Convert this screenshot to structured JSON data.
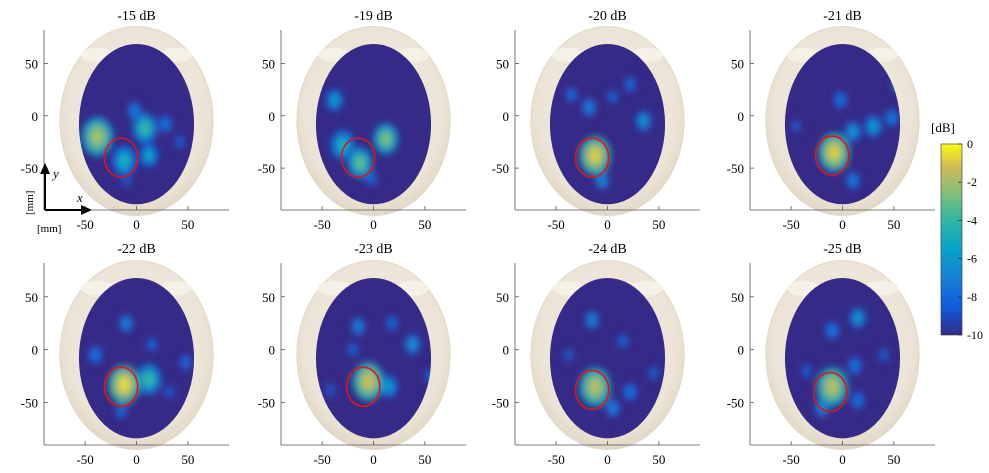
{
  "colorbar": {
    "unit_label": "[dB]",
    "ticks": [
      0,
      -2,
      -4,
      -6,
      -8,
      -10
    ],
    "range": [
      -10,
      0
    ],
    "colormap": "parula"
  },
  "axis_labels": {
    "x": "x",
    "y": "y",
    "x_unit": "[mm]",
    "y_unit": "[mm]"
  },
  "chart_data": [
    {
      "type": "heatmap",
      "title": "-15 dB",
      "xlim": [
        -90,
        90
      ],
      "ylim": [
        -90,
        80
      ],
      "xticks": [
        -50,
        0,
        50
      ],
      "yticks": [
        50,
        0,
        -50
      ],
      "target": {
        "x": -15,
        "y": -40
      },
      "blobs": [
        {
          "x": -38,
          "y": -20,
          "value": -1.8
        },
        {
          "x": -12,
          "y": -43,
          "value": -4.5
        },
        {
          "x": 8,
          "y": -12,
          "value": -3.8
        },
        {
          "x": 12,
          "y": -38,
          "value": -5.0
        },
        {
          "x": -2,
          "y": 5,
          "value": -7.0
        },
        {
          "x": 28,
          "y": -8,
          "value": -7.2
        },
        {
          "x": 42,
          "y": -25,
          "value": -8.0
        },
        {
          "x": -10,
          "y": -62,
          "value": -8.2
        }
      ]
    },
    {
      "type": "heatmap",
      "title": "-19 dB",
      "xlim": [
        -90,
        90
      ],
      "ylim": [
        -90,
        80
      ],
      "xticks": [
        -50,
        0,
        50
      ],
      "yticks": [
        50,
        0,
        -50
      ],
      "target": {
        "x": -15,
        "y": -40
      },
      "blobs": [
        {
          "x": -38,
          "y": 15,
          "value": -5.5
        },
        {
          "x": 12,
          "y": -22,
          "value": -2.5
        },
        {
          "x": -30,
          "y": -28,
          "value": -4.5
        },
        {
          "x": -13,
          "y": -45,
          "value": -3.0
        },
        {
          "x": -2,
          "y": -60,
          "value": -7.5
        }
      ]
    },
    {
      "type": "heatmap",
      "title": "-20 dB",
      "xlim": [
        -90,
        90
      ],
      "ylim": [
        -90,
        80
      ],
      "xticks": [
        -50,
        0,
        50
      ],
      "yticks": [
        50,
        0,
        -50
      ],
      "target": {
        "x": -15,
        "y": -40
      },
      "blobs": [
        {
          "x": -12,
          "y": -38,
          "value": -0.8
        },
        {
          "x": -5,
          "y": -62,
          "value": -6.5
        },
        {
          "x": 35,
          "y": -5,
          "value": -6.0
        },
        {
          "x": -35,
          "y": 20,
          "value": -7.5
        },
        {
          "x": -18,
          "y": 8,
          "value": -6.8
        },
        {
          "x": 22,
          "y": 30,
          "value": -7.5
        },
        {
          "x": 5,
          "y": 18,
          "value": -7.8
        }
      ]
    },
    {
      "type": "heatmap",
      "title": "-21 dB",
      "xlim": [
        -90,
        90
      ],
      "ylim": [
        -90,
        80
      ],
      "xticks": [
        -50,
        0,
        50
      ],
      "yticks": [
        50,
        0,
        -50
      ],
      "target": {
        "x": -10,
        "y": -38
      },
      "blobs": [
        {
          "x": -8,
          "y": -35,
          "value": -0.8
        },
        {
          "x": 10,
          "y": -15,
          "value": -5.8
        },
        {
          "x": 30,
          "y": -10,
          "value": -5.5
        },
        {
          "x": -2,
          "y": 15,
          "value": -7.2
        },
        {
          "x": 55,
          "y": 30,
          "value": -6.5
        },
        {
          "x": 48,
          "y": -2,
          "value": -7.0
        },
        {
          "x": 10,
          "y": -62,
          "value": -7.0
        },
        {
          "x": -45,
          "y": -10,
          "value": -8.2
        }
      ]
    },
    {
      "type": "heatmap",
      "title": "-22 dB",
      "xlim": [
        -90,
        90
      ],
      "ylim": [
        -90,
        80
      ],
      "xticks": [
        -50,
        0,
        50
      ],
      "yticks": [
        50,
        0,
        -50
      ],
      "target": {
        "x": -15,
        "y": -35
      },
      "blobs": [
        {
          "x": -12,
          "y": -33,
          "value": -0.5
        },
        {
          "x": 12,
          "y": -28,
          "value": -3.8
        },
        {
          "x": -15,
          "y": -58,
          "value": -7.5
        },
        {
          "x": -10,
          "y": 25,
          "value": -6.8
        },
        {
          "x": -40,
          "y": -5,
          "value": -7.2
        },
        {
          "x": 15,
          "y": 5,
          "value": -7.8
        },
        {
          "x": 48,
          "y": -12,
          "value": -7.5
        },
        {
          "x": 32,
          "y": -40,
          "value": -8.2
        }
      ]
    },
    {
      "type": "heatmap",
      "title": "-23 dB",
      "xlim": [
        -90,
        90
      ],
      "ylim": [
        -90,
        80
      ],
      "xticks": [
        -50,
        0,
        50
      ],
      "yticks": [
        50,
        0,
        -50
      ],
      "target": {
        "x": -10,
        "y": -35
      },
      "blobs": [
        {
          "x": -5,
          "y": -30,
          "value": -1.2
        },
        {
          "x": 15,
          "y": -35,
          "value": -5.5
        },
        {
          "x": 38,
          "y": 5,
          "value": -6.0
        },
        {
          "x": -15,
          "y": 22,
          "value": -6.8
        },
        {
          "x": 18,
          "y": 25,
          "value": -7.5
        },
        {
          "x": -20,
          "y": 0,
          "value": -7.8
        },
        {
          "x": 55,
          "y": -25,
          "value": -7.8
        },
        {
          "x": -42,
          "y": -38,
          "value": -8.2
        }
      ]
    },
    {
      "type": "heatmap",
      "title": "-24 dB",
      "xlim": [
        -90,
        90
      ],
      "ylim": [
        -90,
        80
      ],
      "xticks": [
        -50,
        0,
        50
      ],
      "yticks": [
        50,
        0,
        -50
      ],
      "target": {
        "x": -15,
        "y": -38
      },
      "blobs": [
        {
          "x": -12,
          "y": -35,
          "value": -1.5
        },
        {
          "x": 5,
          "y": -55,
          "value": -6.8
        },
        {
          "x": 22,
          "y": -40,
          "value": -7.2
        },
        {
          "x": -15,
          "y": 28,
          "value": -6.8
        },
        {
          "x": 15,
          "y": 8,
          "value": -7.8
        },
        {
          "x": 45,
          "y": -22,
          "value": -8.0
        },
        {
          "x": -38,
          "y": -5,
          "value": -8.2
        }
      ]
    },
    {
      "type": "heatmap",
      "title": "-25 dB",
      "xlim": [
        -90,
        90
      ],
      "ylim": [
        -90,
        80
      ],
      "xticks": [
        -50,
        0,
        50
      ],
      "yticks": [
        50,
        0,
        -50
      ],
      "target": {
        "x": -12,
        "y": -40
      },
      "blobs": [
        {
          "x": -10,
          "y": -35,
          "value": -1.5
        },
        {
          "x": -20,
          "y": -55,
          "value": -6.5
        },
        {
          "x": 15,
          "y": 30,
          "value": -5.8
        },
        {
          "x": -10,
          "y": 18,
          "value": -7.0
        },
        {
          "x": 12,
          "y": -15,
          "value": -7.2
        },
        {
          "x": 15,
          "y": -48,
          "value": -7.2
        },
        {
          "x": -35,
          "y": -20,
          "value": -8.0
        },
        {
          "x": 40,
          "y": -5,
          "value": -8.0
        }
      ]
    }
  ]
}
